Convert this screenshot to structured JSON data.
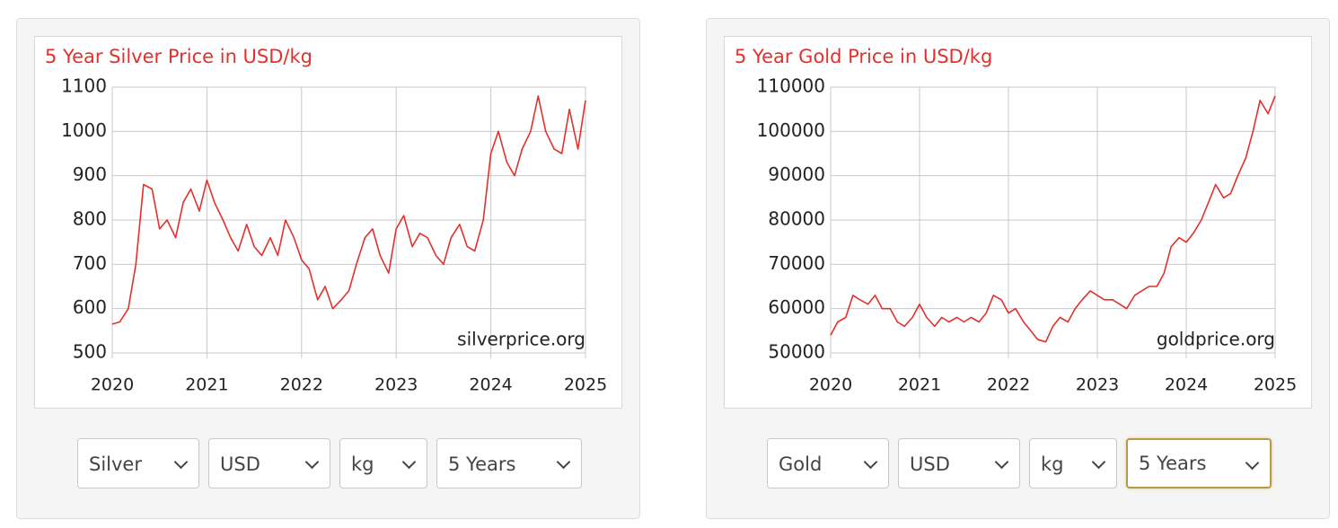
{
  "chart_data": [
    {
      "type": "line",
      "title": "5 Year Silver Price in USD/kg",
      "source_label": "silverprice.org",
      "color": "#e3302c",
      "x": [
        2020.0,
        2020.08,
        2020.17,
        2020.25,
        2020.33,
        2020.42,
        2020.5,
        2020.58,
        2020.67,
        2020.75,
        2020.83,
        2020.92,
        2021.0,
        2021.08,
        2021.17,
        2021.25,
        2021.33,
        2021.42,
        2021.5,
        2021.58,
        2021.67,
        2021.75,
        2021.83,
        2021.92,
        2022.0,
        2022.08,
        2022.17,
        2022.25,
        2022.33,
        2022.42,
        2022.5,
        2022.58,
        2022.67,
        2022.75,
        2022.83,
        2022.92,
        2023.0,
        2023.08,
        2023.17,
        2023.25,
        2023.33,
        2023.42,
        2023.5,
        2023.58,
        2023.67,
        2023.75,
        2023.83,
        2023.92,
        2024.0,
        2024.08,
        2024.17,
        2024.25,
        2024.33,
        2024.42,
        2024.5,
        2024.58,
        2024.67,
        2024.75,
        2024.83,
        2024.92,
        2025.0
      ],
      "values": [
        565,
        570,
        600,
        700,
        880,
        870,
        780,
        800,
        760,
        840,
        870,
        820,
        890,
        840,
        800,
        760,
        730,
        790,
        740,
        720,
        760,
        720,
        800,
        760,
        710,
        690,
        620,
        650,
        600,
        620,
        640,
        700,
        760,
        780,
        720,
        680,
        780,
        810,
        740,
        770,
        760,
        720,
        700,
        760,
        790,
        740,
        730,
        800,
        950,
        1000,
        930,
        900,
        960,
        1000,
        1080,
        1000,
        960,
        950,
        1050,
        960,
        1070
      ],
      "xlim": [
        2020,
        2025
      ],
      "xticks": [
        2020,
        2021,
        2022,
        2023,
        2024,
        2025
      ],
      "ylim": [
        500,
        1100
      ],
      "yticks": [
        500,
        600,
        700,
        800,
        900,
        1000,
        1100
      ],
      "grid": true
    },
    {
      "type": "line",
      "title": "5 Year Gold Price in USD/kg",
      "source_label": "goldprice.org",
      "color": "#e3302c",
      "x": [
        2020.0,
        2020.08,
        2020.17,
        2020.25,
        2020.33,
        2020.42,
        2020.5,
        2020.58,
        2020.67,
        2020.75,
        2020.83,
        2020.92,
        2021.0,
        2021.08,
        2021.17,
        2021.25,
        2021.33,
        2021.42,
        2021.5,
        2021.58,
        2021.67,
        2021.75,
        2021.83,
        2021.92,
        2022.0,
        2022.08,
        2022.17,
        2022.25,
        2022.33,
        2022.42,
        2022.5,
        2022.58,
        2022.67,
        2022.75,
        2022.83,
        2022.92,
        2023.0,
        2023.08,
        2023.17,
        2023.25,
        2023.33,
        2023.42,
        2023.5,
        2023.58,
        2023.67,
        2023.75,
        2023.83,
        2023.92,
        2024.0,
        2024.08,
        2024.17,
        2024.25,
        2024.33,
        2024.42,
        2024.5,
        2024.58,
        2024.67,
        2024.75,
        2024.83,
        2024.92,
        2025.0
      ],
      "values": [
        54000,
        57000,
        58000,
        63000,
        62000,
        61000,
        63000,
        60000,
        60000,
        57000,
        56000,
        58000,
        61000,
        58000,
        56000,
        58000,
        57000,
        58000,
        57000,
        58000,
        57000,
        59000,
        63000,
        62000,
        59000,
        60000,
        57000,
        55000,
        53000,
        52500,
        56000,
        58000,
        57000,
        60000,
        62000,
        64000,
        63000,
        62000,
        62000,
        61000,
        60000,
        63000,
        64000,
        65000,
        65000,
        68000,
        74000,
        76000,
        75000,
        77000,
        80000,
        84000,
        88000,
        85000,
        86000,
        90000,
        94000,
        100000,
        107000,
        104000,
        108000
      ],
      "xlim": [
        2020,
        2025
      ],
      "xticks": [
        2020,
        2021,
        2022,
        2023,
        2024,
        2025
      ],
      "ylim": [
        50000,
        110000
      ],
      "yticks": [
        50000,
        60000,
        70000,
        80000,
        90000,
        100000,
        110000
      ],
      "grid": true
    }
  ],
  "controls": [
    [
      "Silver",
      "USD",
      "kg",
      "5 Years"
    ],
    [
      "Gold",
      "USD",
      "kg",
      "5 Years"
    ]
  ]
}
